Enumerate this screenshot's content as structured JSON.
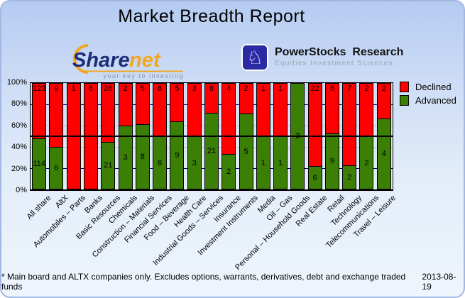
{
  "page": {
    "title": "Market Breadth Report"
  },
  "logos": {
    "sharenet": {
      "part1": "Share",
      "part2": "net",
      "tagline": "your key to investing"
    },
    "powerstocks": {
      "name": "PowerStocks  Research",
      "subtitle": "Equities Investment Sciences"
    }
  },
  "chart_data": {
    "type": "bar",
    "stacked": true,
    "unit": "percent of companies (share of advancers vs decliners, labels = counts)",
    "categories": [
      "All share",
      "AltX",
      "Automobiles – Parts",
      "Banks",
      "Basic Resources",
      "Chemicals",
      "Construction – Materials",
      "Financial Services",
      "Food – Beverage",
      "Health Care",
      "Industrial Goods – Services",
      "Insurance",
      "Investment Instruments",
      "Media",
      "Oil – Gas",
      "Personal – Household Goods",
      "Real Estate",
      "Retail",
      "Technology",
      "Telecommunications",
      "Travel – Leisure"
    ],
    "series": [
      {
        "name": "Declined",
        "color": "#ff0000",
        "values": [
          123,
          9,
          1,
          6,
          26,
          2,
          5,
          8,
          5,
          3,
          8,
          4,
          2,
          1,
          1,
          0,
          22,
          8,
          7,
          2,
          2
        ]
      },
      {
        "name": "Advanced",
        "color": "#3b7f04",
        "values": [
          114,
          6,
          0,
          0,
          21,
          3,
          8,
          8,
          9,
          3,
          21,
          2,
          5,
          1,
          1,
          3,
          6,
          9,
          2,
          2,
          4
        ]
      }
    ],
    "ylim": [
      0,
      100
    ],
    "yticks": [
      "100%",
      "80%",
      "60%",
      "40%",
      "20%",
      "0%"
    ],
    "midline_percent": 50,
    "gridlines": {
      "navy_at": [
        80,
        20
      ],
      "gray_at": [
        60,
        40
      ],
      "navy_color": "#000080",
      "gray_color": "#bcbcbc"
    },
    "legend_position": "right"
  },
  "footer": {
    "note": "* Main board and ALTX companies only. Excludes options, warrants, derivatives, debt and exchange traded funds",
    "date": "2013-08-19"
  }
}
